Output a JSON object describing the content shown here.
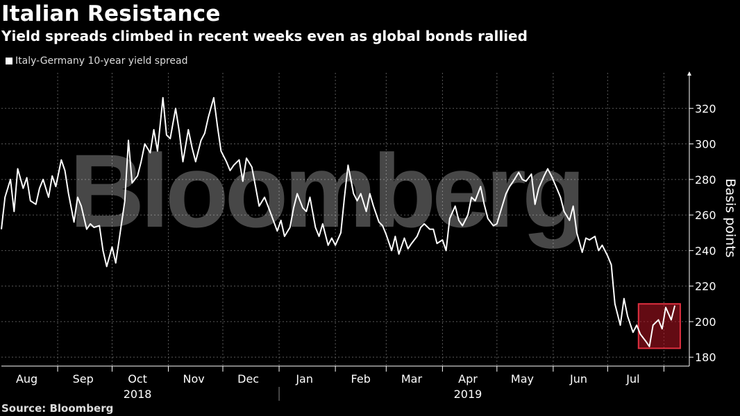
{
  "title": "Italian Resistance",
  "subtitle": "Yield spreads climbed in recent weeks even as global bonds rallied",
  "source": "Source: Bloomberg",
  "watermark": "Bloomberg",
  "colors": {
    "background": "#000000",
    "line": "#ffffff",
    "highlight": "#cc1f2d"
  },
  "chart_data": {
    "type": "line",
    "title": "Italian Resistance",
    "subtitle": "Yield spreads climbed in recent weeks even as global bonds rallied",
    "ylabel": "Basis points",
    "xlabel": "",
    "ylim": [
      175,
      340
    ],
    "yticks": [
      180,
      200,
      220,
      240,
      260,
      280,
      300,
      320
    ],
    "xlim": [
      "2018-08-01",
      "2019-08-15"
    ],
    "month_ticks": [
      {
        "label": "Aug",
        "date": "2018-08-15"
      },
      {
        "label": "Sep",
        "date": "2018-09-15"
      },
      {
        "label": "Oct",
        "date": "2018-10-15"
      },
      {
        "label": "Nov",
        "date": "2018-11-15"
      },
      {
        "label": "Dec",
        "date": "2018-12-15"
      },
      {
        "label": "Jan",
        "date": "2019-01-15"
      },
      {
        "label": "Feb",
        "date": "2019-02-15"
      },
      {
        "label": "Mar",
        "date": "2019-03-15"
      },
      {
        "label": "Apr",
        "date": "2019-04-15"
      },
      {
        "label": "May",
        "date": "2019-05-15"
      },
      {
        "label": "Jun",
        "date": "2019-06-15"
      },
      {
        "label": "Jul",
        "date": "2019-07-15"
      }
    ],
    "year_labels": [
      {
        "label": "2018",
        "date": "2018-10-15"
      },
      {
        "label": "2019",
        "date": "2019-04-15"
      }
    ],
    "grid": true,
    "legend": "top-left",
    "highlight": {
      "x0": "2019-07-18",
      "x1": "2019-08-10",
      "y0": 185,
      "y1": 210
    },
    "series": [
      {
        "name": "Italy-Germany 10-year yield spread",
        "x": [
          "2018-08-01",
          "2018-08-03",
          "2018-08-06",
          "2018-08-08",
          "2018-08-10",
          "2018-08-13",
          "2018-08-15",
          "2018-08-17",
          "2018-08-20",
          "2018-08-22",
          "2018-08-24",
          "2018-08-27",
          "2018-08-29",
          "2018-08-31",
          "2018-09-03",
          "2018-09-05",
          "2018-09-07",
          "2018-09-10",
          "2018-09-12",
          "2018-09-14",
          "2018-09-17",
          "2018-09-19",
          "2018-09-21",
          "2018-09-24",
          "2018-09-26",
          "2018-09-28",
          "2018-10-01",
          "2018-10-03",
          "2018-10-05",
          "2018-10-08",
          "2018-10-10",
          "2018-10-12",
          "2018-10-15",
          "2018-10-17",
          "2018-10-19",
          "2018-10-22",
          "2018-10-24",
          "2018-10-26",
          "2018-10-29",
          "2018-10-31",
          "2018-11-02",
          "2018-11-05",
          "2018-11-07",
          "2018-11-09",
          "2018-11-12",
          "2018-11-14",
          "2018-11-16",
          "2018-11-19",
          "2018-11-21",
          "2018-11-23",
          "2018-11-26",
          "2018-11-28",
          "2018-11-30",
          "2018-12-03",
          "2018-12-05",
          "2018-12-07",
          "2018-12-10",
          "2018-12-12",
          "2018-12-14",
          "2018-12-17",
          "2018-12-19",
          "2018-12-21",
          "2018-12-24",
          "2018-12-27",
          "2018-12-31",
          "2019-01-02",
          "2019-01-04",
          "2019-01-07",
          "2019-01-09",
          "2019-01-11",
          "2019-01-14",
          "2019-01-16",
          "2019-01-18",
          "2019-01-21",
          "2019-01-23",
          "2019-01-25",
          "2019-01-28",
          "2019-01-30",
          "2019-02-01",
          "2019-02-04",
          "2019-02-06",
          "2019-02-08",
          "2019-02-11",
          "2019-02-13",
          "2019-02-15",
          "2019-02-18",
          "2019-02-20",
          "2019-02-22",
          "2019-02-25",
          "2019-02-27",
          "2019-03-01",
          "2019-03-04",
          "2019-03-06",
          "2019-03-08",
          "2019-03-11",
          "2019-03-13",
          "2019-03-15",
          "2019-03-18",
          "2019-03-20",
          "2019-03-22",
          "2019-03-25",
          "2019-03-27",
          "2019-03-29",
          "2019-04-01",
          "2019-04-03",
          "2019-04-05",
          "2019-04-08",
          "2019-04-10",
          "2019-04-12",
          "2019-04-15",
          "2019-04-17",
          "2019-04-19",
          "2019-04-22",
          "2019-04-24",
          "2019-04-26",
          "2019-04-29",
          "2019-05-01",
          "2019-05-03",
          "2019-05-06",
          "2019-05-08",
          "2019-05-10",
          "2019-05-13",
          "2019-05-15",
          "2019-05-17",
          "2019-05-20",
          "2019-05-22",
          "2019-05-24",
          "2019-05-27",
          "2019-05-29",
          "2019-05-31",
          "2019-06-03",
          "2019-06-05",
          "2019-06-07",
          "2019-06-10",
          "2019-06-12",
          "2019-06-14",
          "2019-06-17",
          "2019-06-19",
          "2019-06-21",
          "2019-06-24",
          "2019-06-26",
          "2019-06-28",
          "2019-07-01",
          "2019-07-03",
          "2019-07-05",
          "2019-07-08",
          "2019-07-10",
          "2019-07-12",
          "2019-07-15",
          "2019-07-17",
          "2019-07-19",
          "2019-07-22",
          "2019-07-24",
          "2019-07-26",
          "2019-07-29",
          "2019-07-31",
          "2019-08-02",
          "2019-08-05",
          "2019-08-07"
        ],
        "values": [
          252,
          270,
          280,
          262,
          286,
          275,
          281,
          268,
          266,
          275,
          280,
          270,
          282,
          276,
          291,
          285,
          272,
          256,
          270,
          265,
          252,
          255,
          253,
          254,
          240,
          231,
          242,
          233,
          247,
          268,
          302,
          278,
          282,
          290,
          300,
          295,
          308,
          296,
          326,
          305,
          303,
          320,
          307,
          290,
          308,
          298,
          290,
          302,
          306,
          315,
          326,
          310,
          296,
          290,
          285,
          288,
          291,
          279,
          292,
          287,
          276,
          265,
          270,
          262,
          251,
          257,
          248,
          253,
          264,
          272,
          264,
          262,
          270,
          253,
          248,
          255,
          243,
          247,
          243,
          250,
          270,
          288,
          272,
          268,
          272,
          262,
          272,
          265,
          256,
          254,
          249,
          240,
          248,
          238,
          247,
          241,
          244,
          248,
          253,
          255,
          252,
          252,
          244,
          246,
          240,
          258,
          265,
          257,
          254,
          260,
          270,
          268,
          276,
          266,
          258,
          254,
          255,
          262,
          272,
          276,
          279,
          284,
          280,
          279,
          283,
          266,
          275,
          282,
          286,
          282,
          275,
          270,
          262,
          257,
          265,
          250,
          239,
          247,
          246,
          248,
          240,
          243,
          237,
          232,
          210,
          198,
          213,
          203,
          194,
          198,
          193,
          189,
          186,
          198,
          201,
          196,
          208,
          201,
          209
        ]
      }
    ]
  }
}
